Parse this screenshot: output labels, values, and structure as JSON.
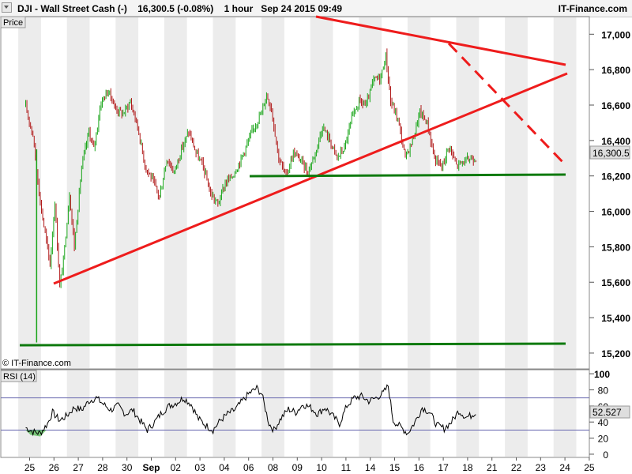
{
  "header": {
    "title": "DJI - Wall Street Cash (-)    16,300.5 (-0.08%)    1 hour   Sep 24 2015 09:49",
    "site": "IT-Finance.com"
  },
  "price_panel": {
    "label": "Price",
    "watermark": "© IT-Finance.com",
    "last_value_label": "16,300.5"
  },
  "rsi_panel": {
    "label": "RSI (14)",
    "last_value_label": "52.527"
  },
  "colors": {
    "up": "#19a519",
    "down": "#b01818",
    "trend": "#ee1c1c",
    "support": "#0f7a0f",
    "rsi_line": "#000000",
    "rsi_band": "#6a6ab0",
    "stripe": "#ececec"
  },
  "chart_data": [
    {
      "type": "line",
      "title": "",
      "xlabel": "",
      "ylabel": "",
      "x_tick_labels": [
        "25",
        "26",
        "27",
        "28",
        "30",
        "Sep",
        "02",
        "03",
        "04",
        "06",
        "08",
        "09",
        "10",
        "11",
        "14",
        "15",
        "16",
        "17",
        "18",
        "21",
        "22",
        "23",
        "24",
        "25"
      ],
      "y_ticks": [
        15200,
        15400,
        15600,
        15800,
        16000,
        16200,
        16400,
        16600,
        16800,
        17000
      ],
      "ylim": [
        15115,
        17095
      ],
      "grid": "vertical day stripes",
      "last_price": 16300.5,
      "close_points": [
        [
          0,
          16590
        ],
        [
          0.3,
          16430
        ],
        [
          0.6,
          16050
        ],
        [
          1.0,
          15700
        ],
        [
          1.2,
          16050
        ],
        [
          1.4,
          15580
        ],
        [
          1.55,
          15720
        ],
        [
          1.8,
          16100
        ],
        [
          2.0,
          15800
        ],
        [
          2.3,
          16250
        ],
        [
          2.6,
          16450
        ],
        [
          2.8,
          16350
        ],
        [
          3.1,
          16620
        ],
        [
          3.4,
          16680
        ],
        [
          3.7,
          16580
        ],
        [
          4.0,
          16550
        ],
        [
          4.3,
          16620
        ],
        [
          4.6,
          16480
        ],
        [
          4.9,
          16260
        ],
        [
          5.2,
          16180
        ],
        [
          5.5,
          16080
        ],
        [
          5.8,
          16300
        ],
        [
          6.1,
          16220
        ],
        [
          6.4,
          16350
        ],
        [
          6.7,
          16450
        ],
        [
          7.0,
          16330
        ],
        [
          7.3,
          16250
        ],
        [
          7.6,
          16100
        ],
        [
          7.9,
          16040
        ],
        [
          8.2,
          16160
        ],
        [
          8.5,
          16200
        ],
        [
          8.8,
          16280
        ],
        [
          9.1,
          16380
        ],
        [
          9.4,
          16480
        ],
        [
          9.7,
          16560
        ],
        [
          9.9,
          16660
        ],
        [
          10.1,
          16580
        ],
        [
          10.4,
          16300
        ],
        [
          10.7,
          16200
        ],
        [
          11.0,
          16330
        ],
        [
          11.3,
          16290
        ],
        [
          11.6,
          16220
        ],
        [
          11.9,
          16330
        ],
        [
          12.2,
          16480
        ],
        [
          12.5,
          16400
        ],
        [
          12.8,
          16300
        ],
        [
          13.1,
          16360
        ],
        [
          13.4,
          16520
        ],
        [
          13.7,
          16620
        ],
        [
          14.0,
          16600
        ],
        [
          14.3,
          16740
        ],
        [
          14.6,
          16760
        ],
        [
          14.8,
          16880
        ],
        [
          15.0,
          16620
        ],
        [
          15.3,
          16520
        ],
        [
          15.6,
          16300
        ],
        [
          15.9,
          16400
        ],
        [
          16.2,
          16560
        ],
        [
          16.5,
          16500
        ],
        [
          16.8,
          16300
        ],
        [
          17.1,
          16250
        ],
        [
          17.4,
          16370
        ],
        [
          17.7,
          16260
        ],
        [
          18.0,
          16280
        ],
        [
          18.3,
          16300
        ],
        [
          18.5,
          16300.5
        ]
      ]
    },
    {
      "type": "line",
      "title": "",
      "ylabel": "",
      "y_ticks": [
        0,
        20,
        40,
        60,
        80,
        100
      ],
      "ylim": [
        -3,
        104
      ],
      "bands": [
        30,
        70
      ],
      "last_value": 52.527,
      "values": [
        [
          0,
          33
        ],
        [
          0.3,
          28
        ],
        [
          0.6,
          26
        ],
        [
          0.9,
          38
        ],
        [
          1.1,
          52
        ],
        [
          1.4,
          42
        ],
        [
          1.7,
          48
        ],
        [
          2.0,
          58
        ],
        [
          2.3,
          55
        ],
        [
          2.6,
          66
        ],
        [
          2.9,
          70
        ],
        [
          3.2,
          62
        ],
        [
          3.5,
          55
        ],
        [
          3.8,
          60
        ],
        [
          4.1,
          50
        ],
        [
          4.4,
          55
        ],
        [
          4.7,
          42
        ],
        [
          5.0,
          30
        ],
        [
          5.3,
          40
        ],
        [
          5.6,
          52
        ],
        [
          5.9,
          60
        ],
        [
          6.2,
          64
        ],
        [
          6.5,
          70
        ],
        [
          6.8,
          62
        ],
        [
          7.1,
          44
        ],
        [
          7.4,
          36
        ],
        [
          7.7,
          30
        ],
        [
          8.0,
          42
        ],
        [
          8.3,
          50
        ],
        [
          8.6,
          55
        ],
        [
          8.9,
          66
        ],
        [
          9.2,
          76
        ],
        [
          9.5,
          82
        ],
        [
          9.7,
          75
        ],
        [
          10.0,
          38
        ],
        [
          10.2,
          30
        ],
        [
          10.5,
          45
        ],
        [
          10.8,
          56
        ],
        [
          11.1,
          52
        ],
        [
          11.4,
          62
        ],
        [
          11.7,
          58
        ],
        [
          12.0,
          50
        ],
        [
          12.3,
          58
        ],
        [
          12.6,
          48
        ],
        [
          12.9,
          38
        ],
        [
          13.2,
          60
        ],
        [
          13.5,
          70
        ],
        [
          13.8,
          72
        ],
        [
          14.1,
          66
        ],
        [
          14.4,
          70
        ],
        [
          14.7,
          76
        ],
        [
          14.9,
          85
        ],
        [
          15.1,
          42
        ],
        [
          15.4,
          34
        ],
        [
          15.7,
          26
        ],
        [
          16.0,
          40
        ],
        [
          16.3,
          58
        ],
        [
          16.6,
          52
        ],
        [
          16.9,
          36
        ],
        [
          17.2,
          32
        ],
        [
          17.5,
          40
        ],
        [
          17.8,
          54
        ],
        [
          18.1,
          46
        ],
        [
          18.3,
          48
        ],
        [
          18.5,
          52.527
        ]
      ]
    }
  ]
}
